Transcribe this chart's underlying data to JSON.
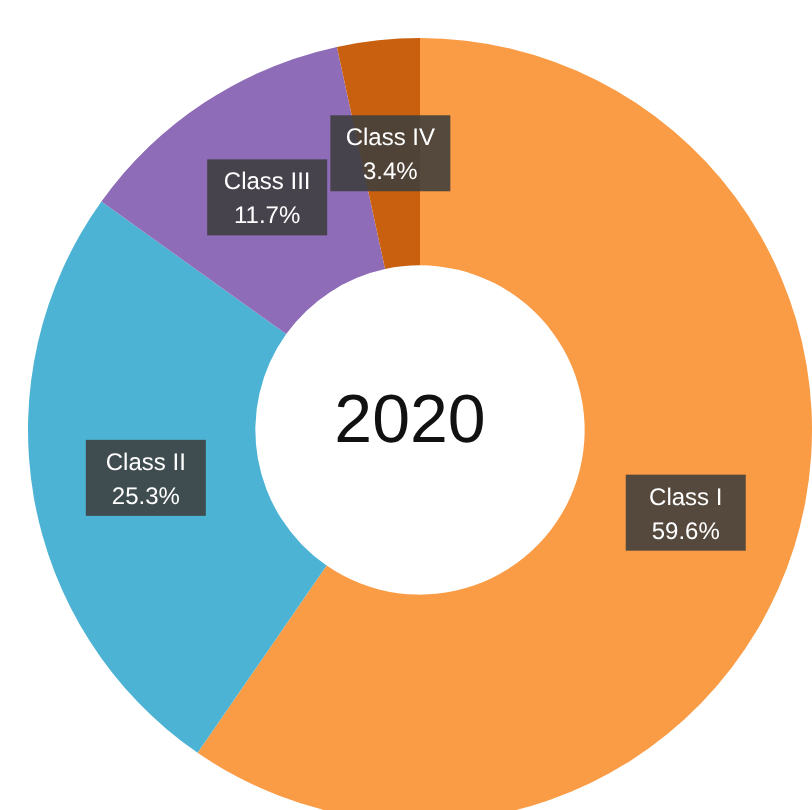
{
  "chart_data": {
    "type": "donut",
    "title": "2020",
    "categories": [
      "Class I",
      "Class II",
      "Class III",
      "Class IV"
    ],
    "values": [
      59.6,
      25.3,
      11.7,
      3.4
    ],
    "colors": [
      "#fa9b45",
      "#4db3d4",
      "#8f6cb8",
      "#c8600f"
    ],
    "value_labels": [
      "59.6%",
      "25.3%",
      "11.7%",
      "3.4%"
    ]
  }
}
